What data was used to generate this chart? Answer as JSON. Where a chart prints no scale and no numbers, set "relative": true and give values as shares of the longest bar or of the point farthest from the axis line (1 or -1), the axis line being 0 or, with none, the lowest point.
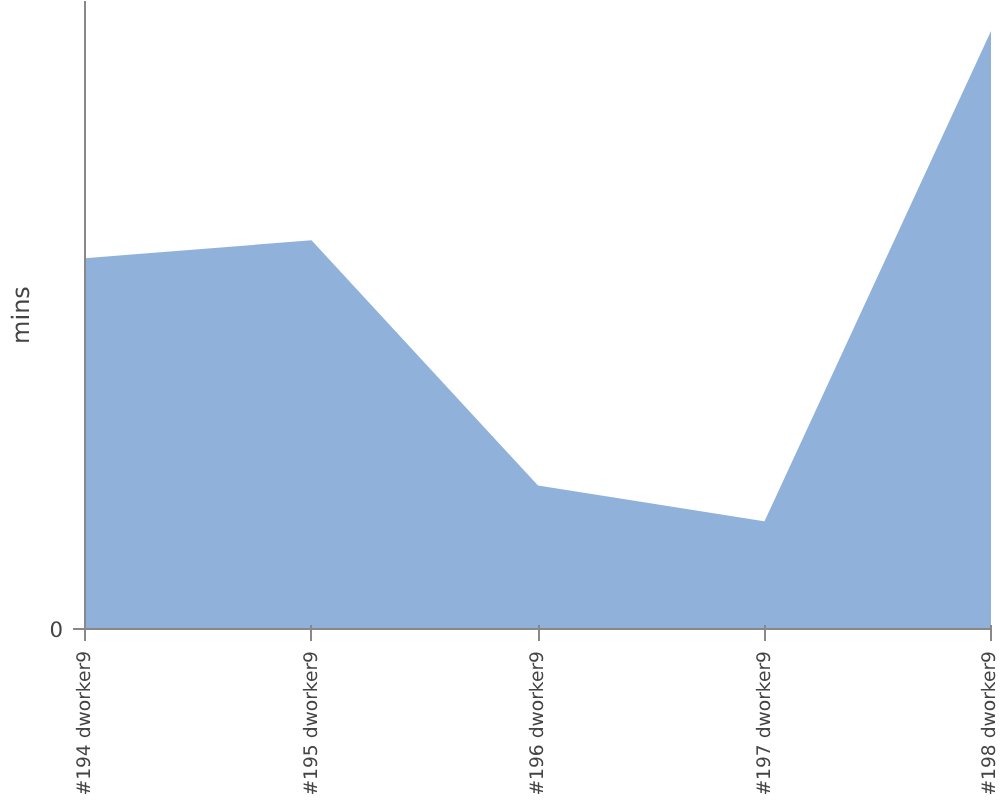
{
  "chart_data": {
    "type": "area",
    "ylabel": "mins",
    "relative": true,
    "categories": [
      "#194 dworker9",
      "#195 dworker9",
      "#196 dworker9",
      "#197 dworker9",
      "#198 dworker9"
    ],
    "values": [
      0.62,
      0.65,
      0.24,
      0.18,
      1
    ],
    "color": "#90b2da",
    "annotations": [
      "0"
    ],
    "grid": false
  }
}
